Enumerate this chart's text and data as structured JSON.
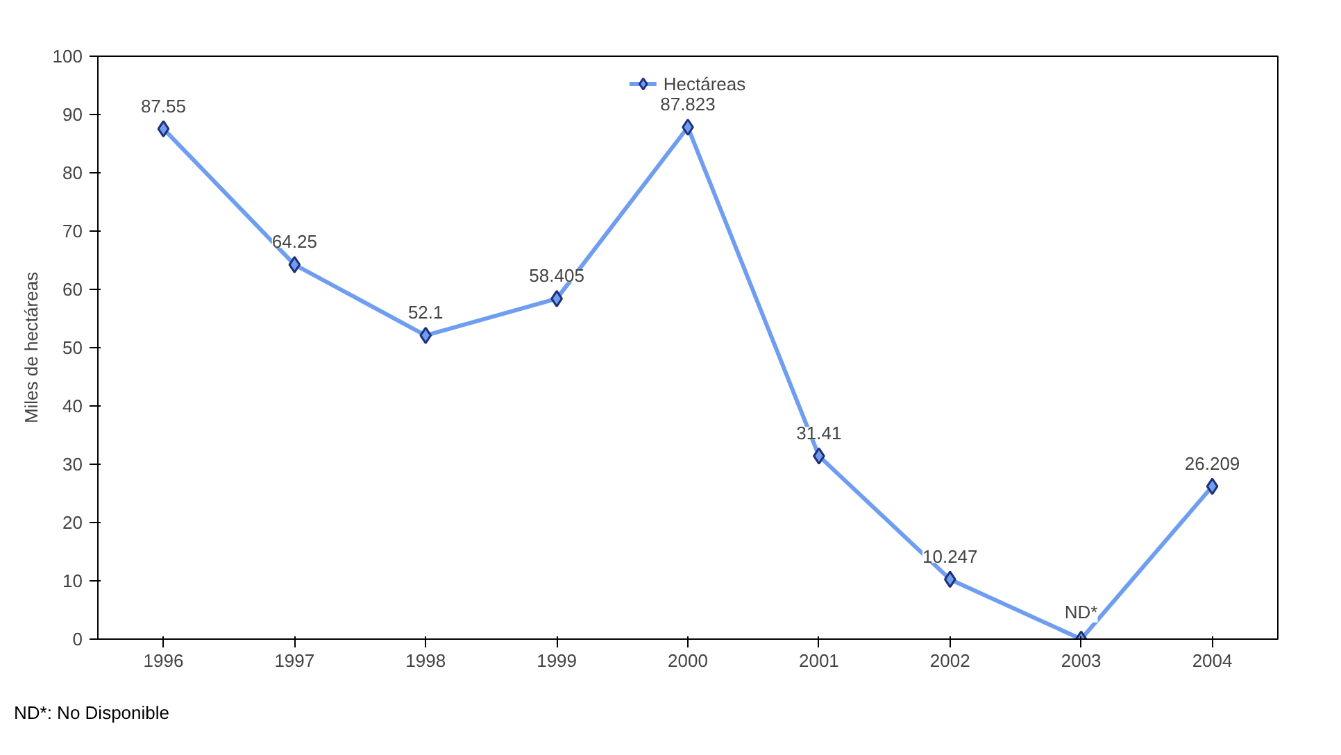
{
  "chart_data": {
    "type": "line",
    "ylabel": "Miles de hectáreas",
    "categories": [
      "1996",
      "1997",
      "1998",
      "1999",
      "2000",
      "2001",
      "2002",
      "2003",
      "2004"
    ],
    "series": [
      {
        "name": "Hectáreas",
        "color": "#6f9ef0",
        "values": [
          87.55,
          64.25,
          52.1,
          58.405,
          87.823,
          31.41,
          10.247,
          0,
          26.209
        ],
        "value_labels": [
          "87.55",
          "64.25",
          "52.1",
          "58.405",
          "87.823",
          "31.41",
          "10.247",
          "ND*",
          "26.209"
        ]
      }
    ],
    "ylim": [
      0,
      100
    ],
    "yticks": [
      0,
      10,
      20,
      30,
      40,
      50,
      60,
      70,
      80,
      90,
      100
    ],
    "grid": false,
    "legend": "top",
    "marker": "diamond",
    "line_style": "solid",
    "annotations": [
      "ND*: No Disponible"
    ]
  }
}
